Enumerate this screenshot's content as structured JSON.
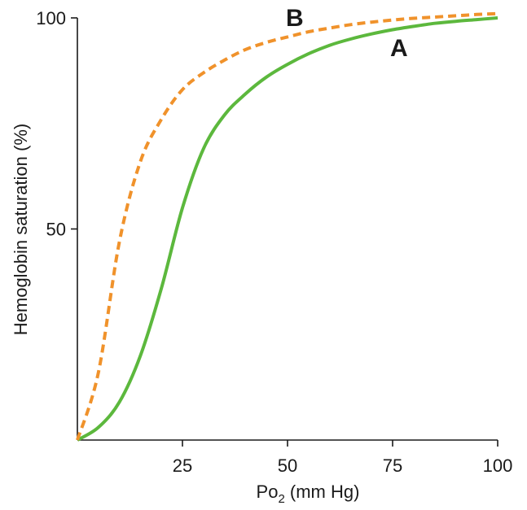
{
  "chart_data": {
    "type": "line",
    "title": "",
    "xlabel": {
      "main": "Po",
      "sub": "2",
      "suffix": " (mm Hg)"
    },
    "ylabel": "Hemoglobin saturation (%)",
    "xlim": [
      0,
      100
    ],
    "ylim": [
      0,
      100
    ],
    "x_ticks": [
      25,
      50,
      75,
      100
    ],
    "x_tick_labels": [
      "25",
      "50",
      "75",
      "100"
    ],
    "y_ticks": [
      50,
      100
    ],
    "y_tick_labels": [
      "50",
      "100"
    ],
    "grid": false,
    "series": [
      {
        "name": "A",
        "color": "#5cb83d",
        "style": "solid",
        "x": [
          0,
          5,
          10,
          15,
          20,
          25,
          30,
          35,
          40,
          45,
          50,
          55,
          60,
          65,
          70,
          75,
          80,
          85,
          90,
          95,
          100
        ],
        "y": [
          0,
          3,
          9,
          20,
          36,
          55,
          69,
          77,
          82,
          86,
          89,
          91.5,
          93.5,
          95,
          96.2,
          97.2,
          98,
          98.7,
          99.2,
          99.6,
          100
        ]
      },
      {
        "name": "B",
        "color": "#f0922b",
        "style": "dashed",
        "x": [
          0,
          5,
          10,
          15,
          20,
          25,
          30,
          35,
          40,
          45,
          50,
          55,
          60,
          65,
          70,
          75,
          80,
          85,
          90,
          95,
          100
        ],
        "y": [
          0,
          16,
          47,
          66,
          76,
          83,
          87,
          90,
          92.5,
          94.2,
          95.5,
          96.7,
          97.6,
          98.4,
          99,
          99.5,
          99.9,
          100.2,
          100.5,
          100.8,
          101
        ]
      }
    ]
  }
}
